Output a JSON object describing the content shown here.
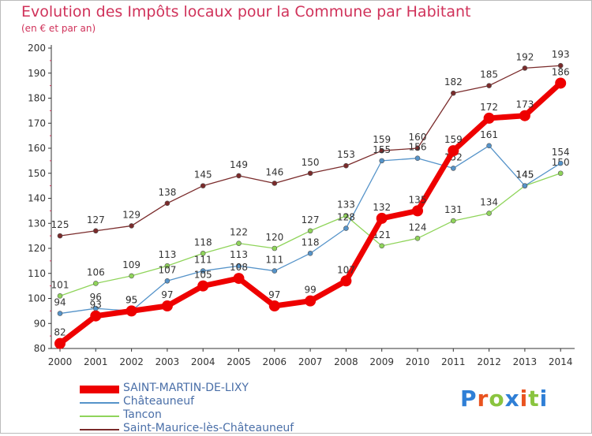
{
  "title": "Evolution des Impôts locaux pour la Commune par Habitant",
  "subtitle": "(en € et par an)",
  "brand": {
    "letters": [
      "P",
      "r",
      "o",
      "x",
      "i",
      "t",
      "i"
    ],
    "colors": [
      "#2f7fd6",
      "#e9531f",
      "#8ac43f",
      "#2f7fd6",
      "#e9531f",
      "#8ac43f",
      "#2f7fd6"
    ]
  },
  "chart_data": {
    "type": "line",
    "x": [
      "2000",
      "2001",
      "2002",
      "2003",
      "2004",
      "2005",
      "2006",
      "2007",
      "2008",
      "2009",
      "2010",
      "2011",
      "2012",
      "2013",
      "2014"
    ],
    "ylim": [
      80,
      200
    ],
    "yticks": [
      80,
      90,
      100,
      110,
      120,
      130,
      140,
      150,
      160,
      170,
      180,
      190,
      200
    ],
    "grid": false,
    "legend_position": "bottom",
    "series": [
      {
        "name": "Saint-Maurice-lès-Châteauneuf",
        "color": "#7a2b2b",
        "values": [
          125,
          127,
          129,
          138,
          145,
          149,
          146,
          150,
          153,
          159,
          160,
          182,
          185,
          192,
          193
        ]
      },
      {
        "name": "Tancon",
        "color": "#8fd45a",
        "values": [
          101,
          106,
          109,
          113,
          118,
          122,
          120,
          127,
          133,
          121,
          124,
          131,
          134,
          145,
          150
        ]
      },
      {
        "name": "Châteauneuf",
        "color": "#5593c9",
        "values": [
          94,
          96,
          95,
          107,
          111,
          113,
          111,
          118,
          128,
          155,
          156,
          152,
          161,
          145,
          154
        ]
      },
      {
        "name": "SAINT-MARTIN-DE-LIXY",
        "color": "#ee0000",
        "values": [
          82,
          93,
          95,
          97,
          105,
          108,
          97,
          99,
          107,
          132,
          135,
          159,
          172,
          173,
          186
        ]
      }
    ]
  }
}
